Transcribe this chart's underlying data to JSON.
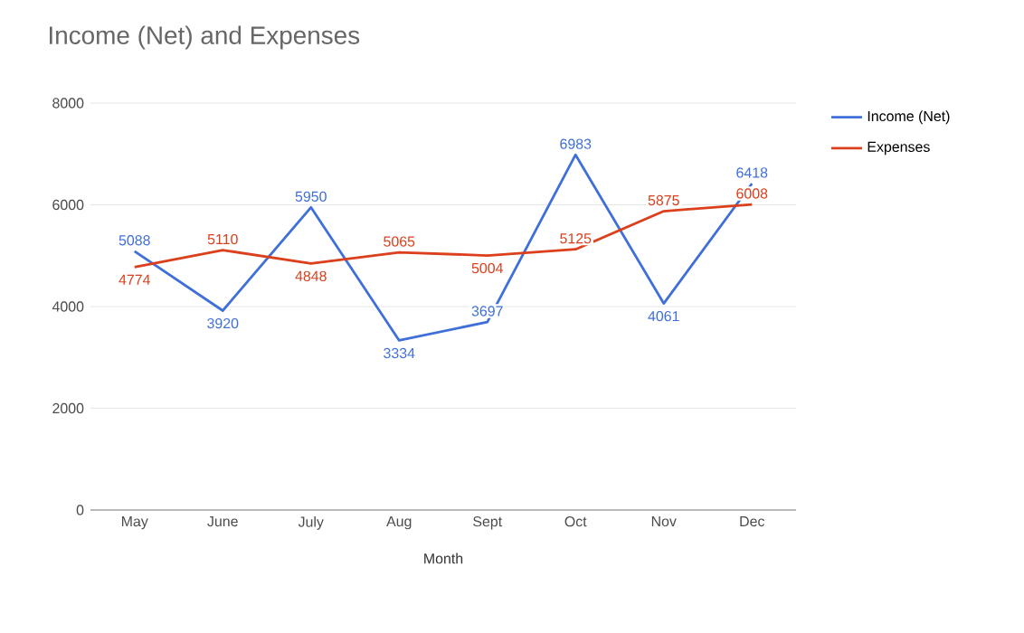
{
  "chart_data": {
    "type": "line",
    "title": "Income (Net) and Expenses",
    "xlabel": "Month",
    "categories": [
      "May",
      "June",
      "July",
      "Aug",
      "Sept",
      "Oct",
      "Nov",
      "Dec"
    ],
    "series": [
      {
        "name": "Income (Net)",
        "color": "#3f6fd9",
        "values": [
          5088,
          3920,
          5950,
          3334,
          3697,
          6983,
          4061,
          6418
        ]
      },
      {
        "name": "Expenses",
        "color": "#dc3f1c",
        "values": [
          4774,
          5110,
          4848,
          5065,
          5004,
          5125,
          5875,
          6008
        ]
      }
    ],
    "ylim": [
      0,
      8000
    ],
    "yticks": [
      0,
      2000,
      4000,
      6000,
      8000
    ],
    "grid": "y",
    "legend": "top right",
    "data_labels": true,
    "marker": "none",
    "line_style": "solid"
  }
}
